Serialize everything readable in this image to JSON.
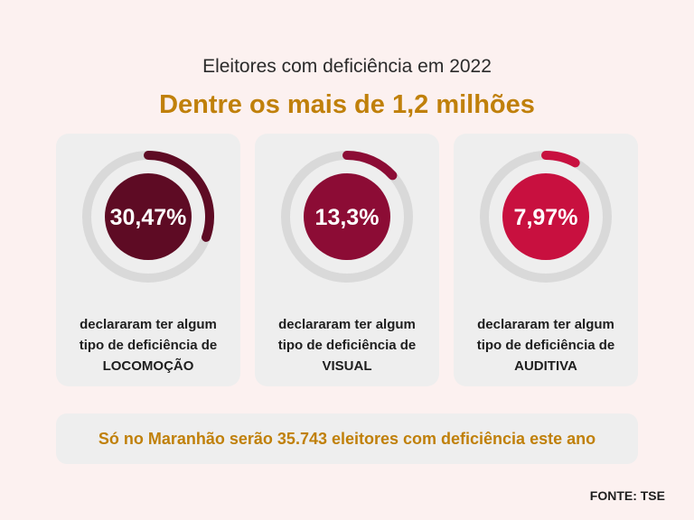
{
  "header": {
    "subtitle": "Eleitores com deficiência em 2022",
    "title": "Dentre os mais de 1,2 milhões"
  },
  "colors": {
    "track": "#d9d9d9",
    "locomocao": "#5e0b24",
    "visual": "#8c0c35",
    "auditiva": "#c8103f",
    "accent": "#c0800a"
  },
  "chart_data": {
    "type": "pie",
    "title": "Dentre os mais de 1,2 milhões",
    "series": [
      {
        "name": "LOCOMOÇÃO",
        "value": 30.47,
        "label": "30,47%",
        "desc_line1": "declararam ter algum",
        "desc_line2": "tipo de deficiência de",
        "category": "LOCOMOÇÃO"
      },
      {
        "name": "VISUAL",
        "value": 13.3,
        "label": "13,3%",
        "desc_line1": "declararam ter algum",
        "desc_line2": "tipo de deficiência de",
        "category": "VISUAL"
      },
      {
        "name": "AUDITIVA",
        "value": 7.97,
        "label": "7,97%",
        "desc_line1": "declararam ter algum",
        "desc_line2": "tipo de deficiência de",
        "category": "AUDITIVA"
      }
    ]
  },
  "footer": {
    "note": "Só no Maranhão serão 35.743 eleitores com deficiência este ano",
    "source": "FONTE: TSE"
  }
}
